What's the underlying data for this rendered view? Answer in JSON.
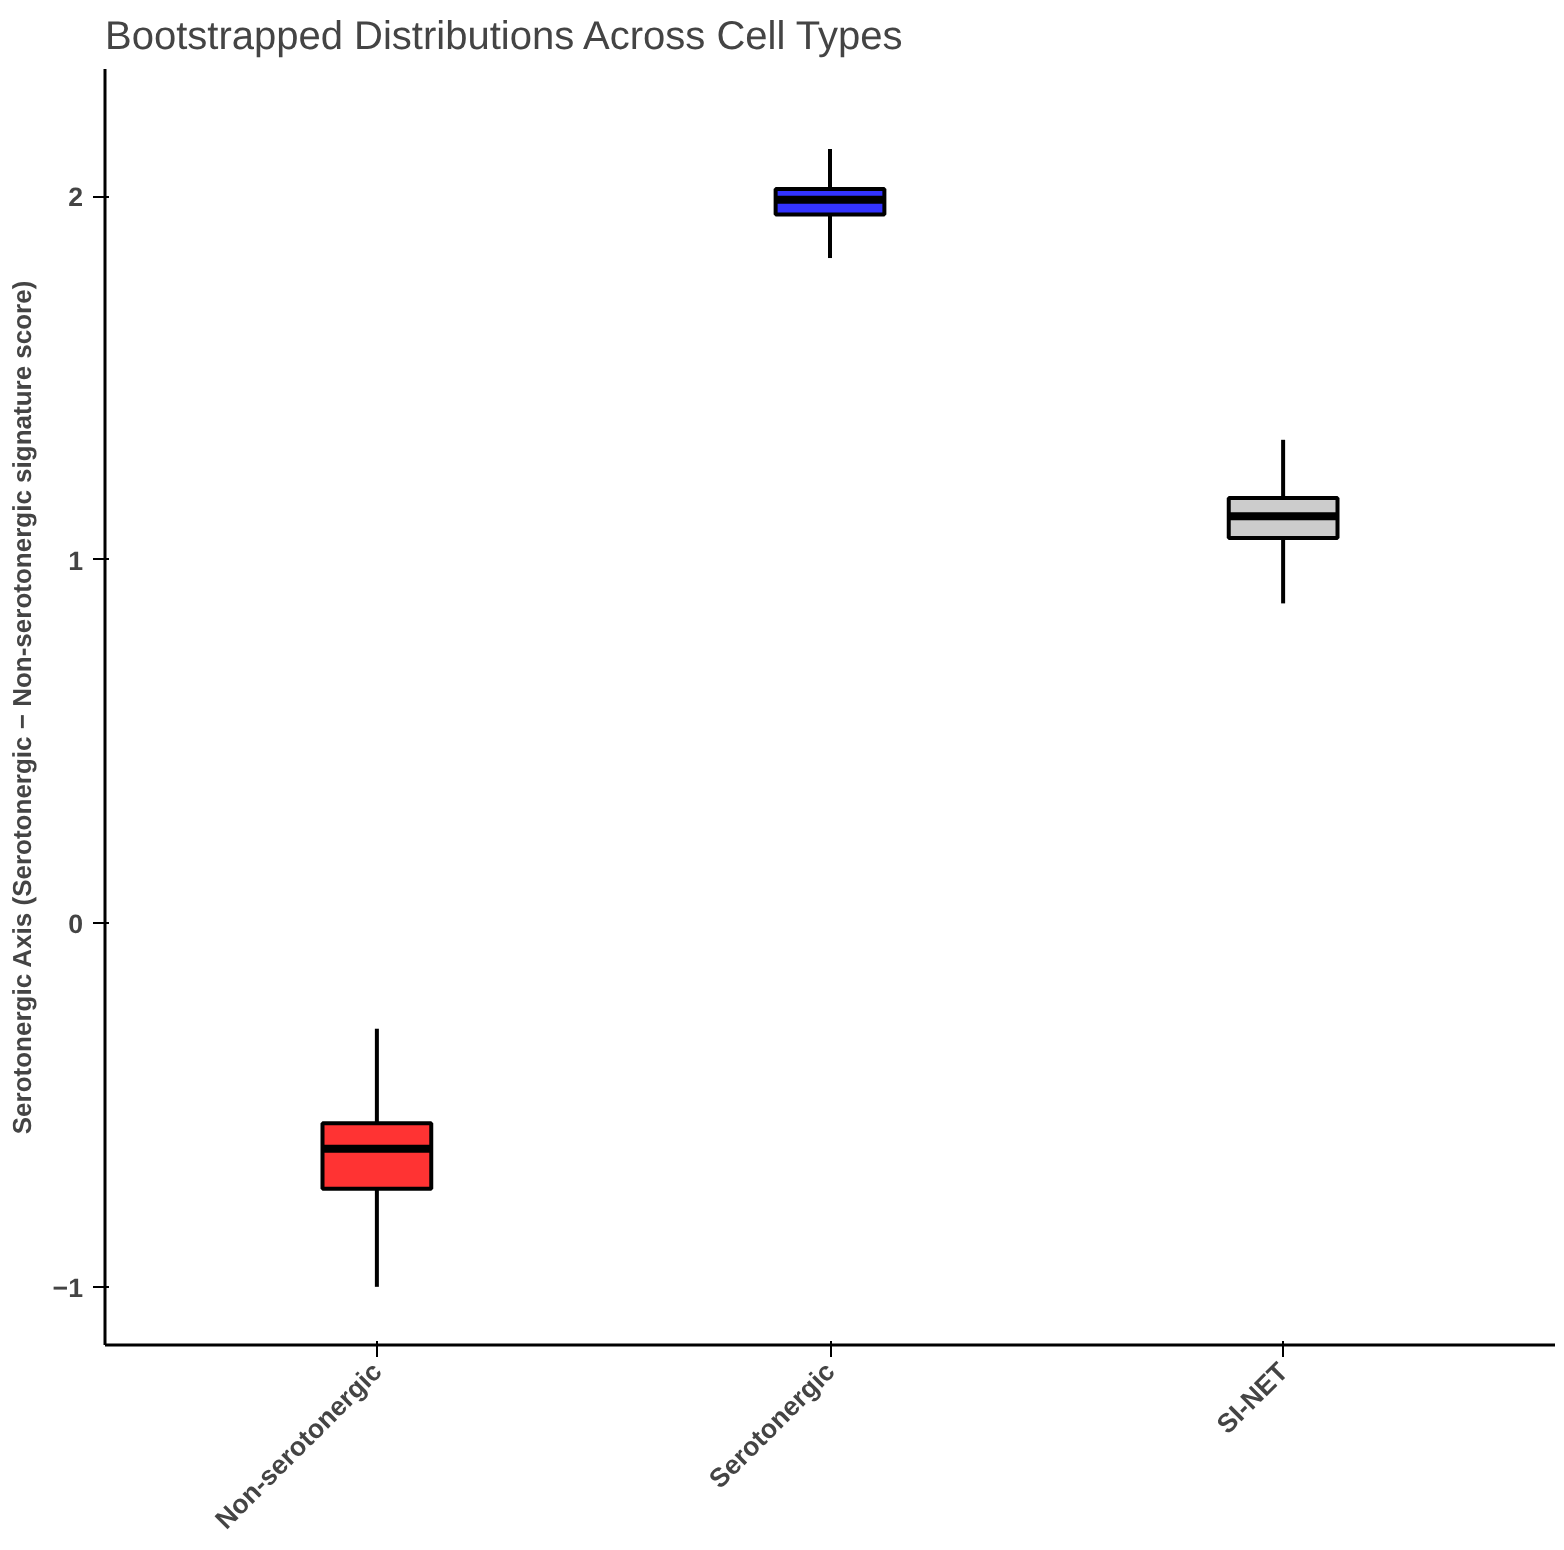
{
  "chart_data": {
    "type": "box",
    "title": "Bootstrapped Distributions Across Cell Types",
    "ylabel": "Serotonergic Axis (Serotonergic − Non-serotonergic signature score)",
    "categories": [
      "Non-serotonergic",
      "Serotonergic",
      "SI-NET"
    ],
    "colors": [
      "#ff3333",
      "#3333ff",
      "#cccccc"
    ],
    "boxes": [
      {
        "low": -1.0,
        "q1": -0.73,
        "median": -0.62,
        "q3": -0.55,
        "high": -0.29
      },
      {
        "low": 1.83,
        "q1": 1.95,
        "median": 1.99,
        "q3": 2.02,
        "high": 2.13
      },
      {
        "low": 0.88,
        "q1": 1.06,
        "median": 1.12,
        "q3": 1.17,
        "high": 1.33
      }
    ],
    "ylim": [
      -1.16,
      2.35
    ],
    "yticks": [
      -1,
      0,
      1,
      2
    ],
    "grid": false
  }
}
